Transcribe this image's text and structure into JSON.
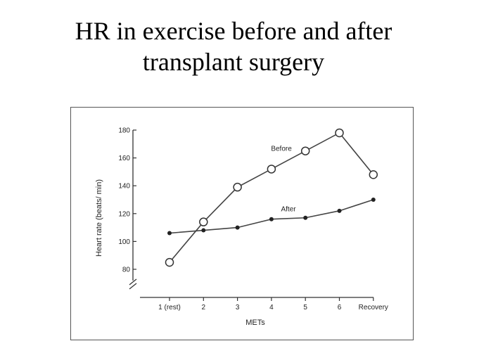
{
  "slide": {
    "title_line1": "HR in exercise before and after",
    "title_line2": "transplant surgery"
  },
  "chart_data": {
    "type": "line",
    "xlabel": "METs",
    "ylabel": "Heart rate (beats/ min)",
    "categories": [
      "1 (rest)",
      "2",
      "3",
      "4",
      "5",
      "6",
      "Recovery"
    ],
    "yticks": [
      80,
      100,
      120,
      140,
      160,
      180
    ],
    "ylim": [
      80,
      180
    ],
    "axis_break": true,
    "grid": false,
    "series": [
      {
        "name": "Before",
        "marker": "open-circle",
        "values": [
          85,
          114,
          139,
          152,
          165,
          178,
          148
        ]
      },
      {
        "name": "After",
        "marker": "filled-dot",
        "values": [
          106,
          108,
          110,
          116,
          117,
          122,
          130
        ]
      }
    ]
  }
}
